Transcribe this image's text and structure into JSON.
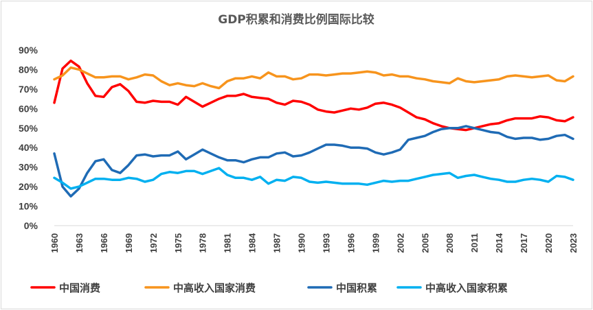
{
  "chart_data": {
    "type": "line",
    "title": "GDP积累和消费比例国际比较",
    "xlabel": "",
    "ylabel": "",
    "ylim": [
      0,
      90
    ],
    "y_ticks": [
      "0%",
      "10%",
      "20%",
      "30%",
      "40%",
      "50%",
      "60%",
      "70%",
      "80%",
      "90%"
    ],
    "x_ticks": [
      "1960",
      "1963",
      "1966",
      "1969",
      "1972",
      "1975",
      "1978",
      "1981",
      "1984",
      "1987",
      "1990",
      "1993",
      "1996",
      "1999",
      "2002",
      "2005",
      "2008",
      "2011",
      "2014",
      "2017",
      "2020",
      "2023"
    ],
    "grid": false,
    "legend_position": "bottom",
    "x": [
      1960,
      1961,
      1962,
      1963,
      1964,
      1965,
      1966,
      1967,
      1968,
      1969,
      1970,
      1971,
      1972,
      1973,
      1974,
      1975,
      1976,
      1977,
      1978,
      1979,
      1980,
      1981,
      1982,
      1983,
      1984,
      1985,
      1986,
      1987,
      1988,
      1989,
      1990,
      1991,
      1992,
      1993,
      1994,
      1995,
      1996,
      1997,
      1998,
      1999,
      2000,
      2001,
      2002,
      2003,
      2004,
      2005,
      2006,
      2007,
      2008,
      2009,
      2010,
      2011,
      2012,
      2013,
      2014,
      2015,
      2016,
      2017,
      2018,
      2019,
      2020,
      2021,
      2022,
      2023
    ],
    "series": [
      {
        "name": "中国消费",
        "color": "#ff0000",
        "values": [
          63,
          80.5,
          84.5,
          81.5,
          73,
          66.5,
          66,
          71,
          72.5,
          69,
          63.5,
          63,
          64,
          63.5,
          63.5,
          62,
          66,
          63.5,
          61,
          63,
          65,
          66.5,
          66.5,
          67.5,
          66,
          65.5,
          65,
          63,
          62,
          64,
          63.5,
          62,
          59.5,
          58.5,
          58,
          59,
          60,
          59.5,
          60.5,
          62.5,
          63,
          62,
          60.5,
          58,
          55.5,
          54.5,
          52.5,
          51,
          50,
          49.5,
          49,
          50,
          51,
          52,
          52.5,
          54,
          55,
          55,
          55,
          56,
          55.5,
          54,
          53.5,
          55.5
        ]
      },
      {
        "name": "中高收入国家消费",
        "color": "#f7941d",
        "values": [
          75,
          77,
          81,
          80,
          78,
          76,
          76,
          76.5,
          76.5,
          75,
          76,
          77.5,
          77,
          74,
          72,
          73,
          72,
          71.5,
          73,
          71.5,
          70.5,
          74,
          75.5,
          75.5,
          76.5,
          75.5,
          78.5,
          76.5,
          76.5,
          75,
          75.5,
          77.5,
          77.5,
          77,
          77.5,
          78,
          78,
          78.5,
          79,
          78.5,
          77,
          77.5,
          76.5,
          76.5,
          75.5,
          75,
          74,
          73.5,
          73,
          75.5,
          74,
          73.5,
          74,
          74.5,
          75,
          76.5,
          77,
          76.5,
          76,
          76.5,
          77,
          74.5,
          74,
          76.5
        ]
      },
      {
        "name": "中国积累",
        "color": "#1f6bb5",
        "values": [
          37,
          20,
          15,
          19,
          27,
          33,
          34,
          28.5,
          27,
          31,
          36,
          36.5,
          35.5,
          36,
          36,
          38,
          34,
          36.5,
          39,
          37,
          35,
          33.5,
          33.5,
          32.5,
          34,
          35,
          35,
          37,
          37.5,
          35.5,
          36,
          37.5,
          39.5,
          41.5,
          41.5,
          41,
          40,
          40,
          39.5,
          37.5,
          36.5,
          37.5,
          39,
          44,
          45,
          46,
          48,
          49.5,
          50,
          50,
          51,
          50,
          49,
          48,
          47.5,
          45.5,
          44.5,
          45,
          45,
          44,
          44.5,
          46,
          46.5,
          44.5
        ]
      },
      {
        "name": "中高收入国家积累",
        "color": "#00b0f0",
        "values": [
          24.5,
          22,
          19,
          20,
          22,
          24,
          24,
          23.5,
          23.5,
          24.5,
          24,
          22.5,
          23.5,
          26.5,
          27.5,
          27,
          28,
          28,
          26.5,
          28,
          29.5,
          26,
          24.5,
          24.5,
          23.5,
          25,
          21.5,
          23.5,
          23,
          25,
          24.5,
          22.5,
          22,
          22.5,
          22,
          21.5,
          21.5,
          21.5,
          21,
          22,
          23,
          22.5,
          23,
          23,
          24,
          25,
          26,
          26.5,
          27,
          24.5,
          25.5,
          26,
          25,
          24,
          23.5,
          22.5,
          22.5,
          23.5,
          24,
          23.5,
          22.5,
          25.5,
          25,
          23.5
        ]
      }
    ]
  }
}
